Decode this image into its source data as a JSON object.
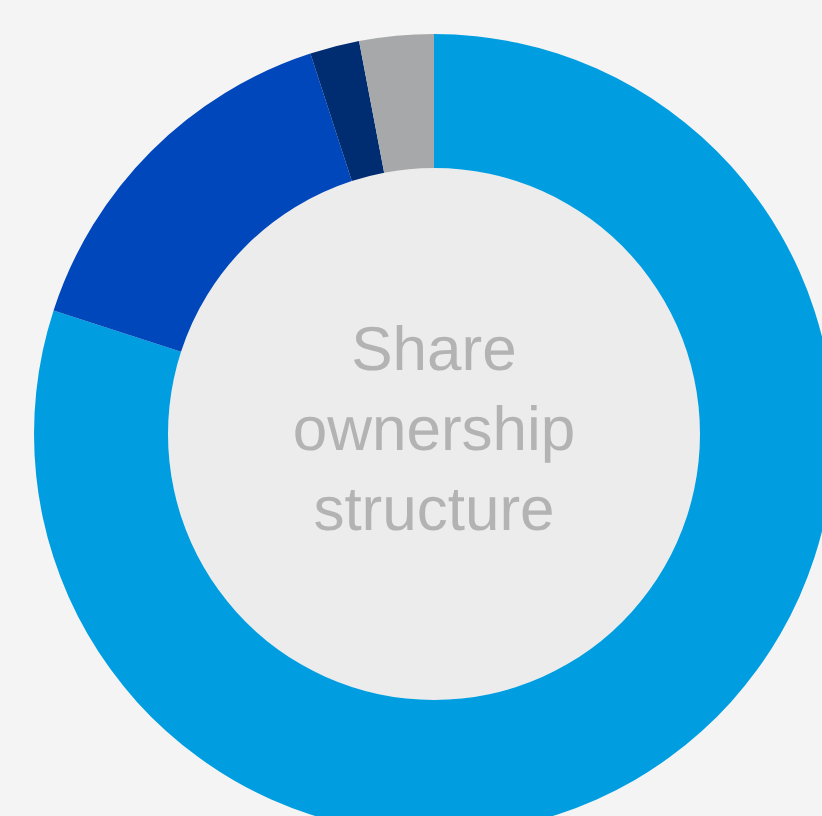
{
  "chart_data": {
    "type": "donut",
    "title": "Share ownership structure",
    "categories": [
      null,
      null,
      null,
      null
    ],
    "values": [
      80,
      15,
      2,
      3
    ],
    "colors": [
      "#009ee0",
      "#0047bb",
      "#002d72",
      "#a7a8aa"
    ]
  }
}
